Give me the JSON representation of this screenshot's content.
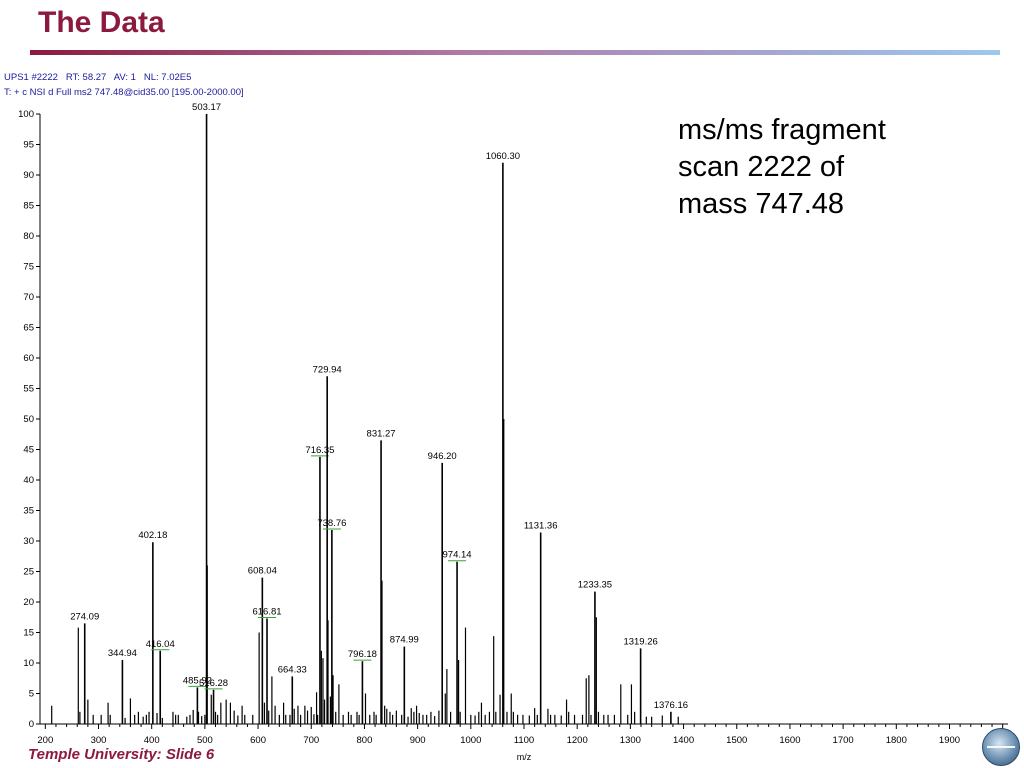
{
  "slide": {
    "title": "The Data",
    "footer": "Temple University: Slide 6",
    "note_lines": [
      "ms/ms fragment",
      "scan 2222 of",
      "mass 747.48"
    ],
    "accent_color": "#8b1a3e"
  },
  "scan_header": {
    "line1": {
      "scan_label": "UPS1 #",
      "scan_no": "2222",
      "rt_label": "RT:",
      "rt": "58.27",
      "av_label": "AV:",
      "av": "1",
      "nl_label": "NL:",
      "nl": "7.02E5"
    },
    "line2": "T: + c NSI d Full ms2 747.48@cid35.00 [195.00-2000.00]"
  },
  "chart_data": {
    "type": "bar",
    "xlabel": "m/z",
    "ylabel": "",
    "xlim": [
      190,
      2010
    ],
    "ylim": [
      0,
      100
    ],
    "x_ticks": [
      200,
      300,
      400,
      500,
      600,
      700,
      800,
      900,
      1000,
      1100,
      1200,
      1300,
      1400,
      1500,
      1600,
      1700,
      1800,
      1900,
      2000
    ],
    "y_ticks": [
      0,
      5,
      10,
      15,
      20,
      25,
      30,
      35,
      40,
      45,
      50,
      55,
      60,
      65,
      70,
      75,
      80,
      85,
      90,
      95,
      100
    ],
    "grid": false,
    "labeled_peaks": [
      {
        "mz": 274.09,
        "intensity": 16.5,
        "label": "274.09"
      },
      {
        "mz": 344.94,
        "intensity": 10.5,
        "label": "344.94"
      },
      {
        "mz": 402.18,
        "intensity": 29.8,
        "label": "402.18"
      },
      {
        "mz": 416.04,
        "intensity": 12.0,
        "label": "416.04"
      },
      {
        "mz": 485.92,
        "intensity": 6.0,
        "label": "485.92"
      },
      {
        "mz": 503.17,
        "intensity": 100.0,
        "label": "503.17"
      },
      {
        "mz": 516.28,
        "intensity": 5.6,
        "label": "516.28"
      },
      {
        "mz": 608.04,
        "intensity": 24.0,
        "label": "608.04"
      },
      {
        "mz": 616.81,
        "intensity": 17.3,
        "label": "616.81"
      },
      {
        "mz": 664.33,
        "intensity": 7.8,
        "label": "664.33"
      },
      {
        "mz": 716.35,
        "intensity": 43.8,
        "label": "716.35"
      },
      {
        "mz": 729.94,
        "intensity": 57.0,
        "label": "729.94"
      },
      {
        "mz": 738.76,
        "intensity": 31.8,
        "label": "738.76"
      },
      {
        "mz": 796.18,
        "intensity": 10.3,
        "label": "796.18"
      },
      {
        "mz": 831.27,
        "intensity": 46.5,
        "label": "831.27"
      },
      {
        "mz": 874.99,
        "intensity": 12.7,
        "label": "874.99"
      },
      {
        "mz": 946.2,
        "intensity": 42.8,
        "label": "946.20"
      },
      {
        "mz": 974.14,
        "intensity": 26.6,
        "label": "974.14"
      },
      {
        "mz": 1060.3,
        "intensity": 92.0,
        "label": "1060.30"
      },
      {
        "mz": 1131.36,
        "intensity": 31.4,
        "label": "1131.36"
      },
      {
        "mz": 1233.35,
        "intensity": 21.7,
        "label": "1233.35"
      },
      {
        "mz": 1319.26,
        "intensity": 12.4,
        "label": "1319.26"
      },
      {
        "mz": 1376.16,
        "intensity": 2.0,
        "label": "1376.16"
      }
    ],
    "minor_peaks": [
      [
        212,
        3.0
      ],
      [
        262,
        15.8
      ],
      [
        265,
        2.0
      ],
      [
        280,
        4.0
      ],
      [
        290,
        1.5
      ],
      [
        305,
        1.5
      ],
      [
        318,
        3.5
      ],
      [
        322,
        1.5
      ],
      [
        350,
        1.0
      ],
      [
        360,
        4.2
      ],
      [
        368,
        1.5
      ],
      [
        375,
        2.0
      ],
      [
        384,
        1.2
      ],
      [
        390,
        1.5
      ],
      [
        395,
        2.0
      ],
      [
        410,
        1.8
      ],
      [
        420,
        1.0
      ],
      [
        440,
        2.0
      ],
      [
        445,
        1.5
      ],
      [
        450,
        1.5
      ],
      [
        466,
        1.2
      ],
      [
        472,
        1.5
      ],
      [
        478,
        2.3
      ],
      [
        488,
        2.0
      ],
      [
        494,
        1.3
      ],
      [
        500,
        1.5
      ],
      [
        504.5,
        26.0
      ],
      [
        512,
        4.8
      ],
      [
        520,
        2.0
      ],
      [
        524,
        1.5
      ],
      [
        530,
        3.5
      ],
      [
        540,
        4.0
      ],
      [
        548,
        3.5
      ],
      [
        555,
        2.2
      ],
      [
        562,
        1.4
      ],
      [
        570,
        3.0
      ],
      [
        575,
        1.5
      ],
      [
        590,
        1.5
      ],
      [
        602,
        15.0
      ],
      [
        612,
        3.5
      ],
      [
        620,
        2.2
      ],
      [
        626,
        7.8
      ],
      [
        632,
        3.0
      ],
      [
        640,
        1.5
      ],
      [
        648,
        3.5
      ],
      [
        652,
        1.5
      ],
      [
        660,
        1.5
      ],
      [
        668,
        2.5
      ],
      [
        675,
        3.0
      ],
      [
        680,
        1.5
      ],
      [
        688,
        3.0
      ],
      [
        693,
        2.2
      ],
      [
        700,
        2.8
      ],
      [
        705,
        1.6
      ],
      [
        710,
        5.2
      ],
      [
        712,
        1.5
      ],
      [
        719,
        12.0
      ],
      [
        722,
        10.8
      ],
      [
        725,
        4.0
      ],
      [
        731.5,
        17.0
      ],
      [
        736,
        4.5
      ],
      [
        741,
        8.0
      ],
      [
        746,
        2.0
      ],
      [
        752,
        6.5
      ],
      [
        760,
        1.5
      ],
      [
        770,
        2.0
      ],
      [
        775,
        1.5
      ],
      [
        786,
        2.0
      ],
      [
        790,
        1.5
      ],
      [
        802,
        5.0
      ],
      [
        810,
        1.5
      ],
      [
        818,
        2.0
      ],
      [
        822,
        1.5
      ],
      [
        833,
        23.5
      ],
      [
        838,
        3.0
      ],
      [
        842,
        2.5
      ],
      [
        848,
        2.0
      ],
      [
        853,
        1.5
      ],
      [
        860,
        2.2
      ],
      [
        870,
        1.5
      ],
      [
        882,
        1.2
      ],
      [
        888,
        2.6
      ],
      [
        893,
        2.0
      ],
      [
        898,
        3.0
      ],
      [
        903,
        1.8
      ],
      [
        910,
        1.5
      ],
      [
        917,
        1.5
      ],
      [
        925,
        2.0
      ],
      [
        932,
        1.3
      ],
      [
        940,
        2.2
      ],
      [
        952,
        5.0
      ],
      [
        955,
        9.0
      ],
      [
        962,
        2.0
      ],
      [
        977,
        10.5
      ],
      [
        980,
        2.0
      ],
      [
        990,
        15.8
      ],
      [
        1000,
        1.5
      ],
      [
        1008,
        1.4
      ],
      [
        1015,
        2.0
      ],
      [
        1020,
        3.5
      ],
      [
        1027,
        1.5
      ],
      [
        1035,
        2.0
      ],
      [
        1043,
        14.4
      ],
      [
        1047,
        2.0
      ],
      [
        1055,
        4.8
      ],
      [
        1062,
        50.0
      ],
      [
        1068,
        2.0
      ],
      [
        1076,
        5.0
      ],
      [
        1080,
        2.0
      ],
      [
        1088,
        1.5
      ],
      [
        1098,
        1.5
      ],
      [
        1110,
        1.4
      ],
      [
        1120,
        2.6
      ],
      [
        1125,
        1.5
      ],
      [
        1145,
        2.5
      ],
      [
        1150,
        1.5
      ],
      [
        1158,
        1.5
      ],
      [
        1170,
        1.4
      ],
      [
        1180,
        4.0
      ],
      [
        1184,
        2.0
      ],
      [
        1195,
        1.5
      ],
      [
        1210,
        1.5
      ],
      [
        1217,
        7.5
      ],
      [
        1222,
        8.0
      ],
      [
        1226,
        1.5
      ],
      [
        1236,
        17.5
      ],
      [
        1240,
        2.0
      ],
      [
        1250,
        1.5
      ],
      [
        1258,
        1.5
      ],
      [
        1270,
        1.5
      ],
      [
        1282,
        6.5
      ],
      [
        1295,
        1.5
      ],
      [
        1302,
        6.5
      ],
      [
        1308,
        2.0
      ],
      [
        1330,
        1.2
      ],
      [
        1340,
        1.2
      ],
      [
        1360,
        1.4
      ],
      [
        1390,
        1.2
      ]
    ]
  }
}
